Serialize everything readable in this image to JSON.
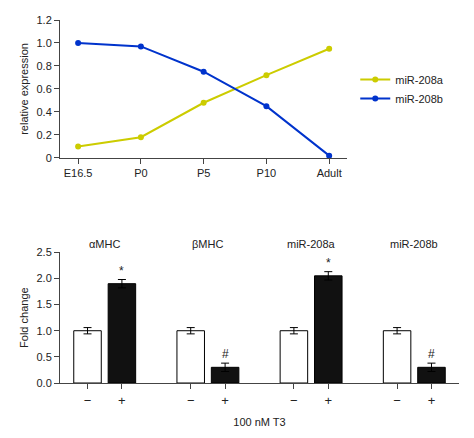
{
  "chart_data": [
    {
      "type": "line",
      "categories": [
        "E16.5",
        "P0",
        "P5",
        "P10",
        "Adult"
      ],
      "series": [
        {
          "name": "miR-208a",
          "color": "#cccc00",
          "values": [
            0.1,
            0.18,
            0.48,
            0.72,
            0.95
          ],
          "marker": "circle",
          "line_style": "solid"
        },
        {
          "name": "miR-208b",
          "color": "#0033cc",
          "values": [
            1.0,
            0.97,
            0.75,
            0.45,
            0.02
          ],
          "marker": "circle",
          "line_style": "solid"
        }
      ],
      "ylabel": "relative expression",
      "ylim": [
        0,
        1.2
      ],
      "yticks": [
        0,
        0.2,
        0.4,
        0.6,
        0.8,
        {
          "value": 1.0,
          "label": "1.0"
        },
        1.2
      ],
      "grid": false,
      "legend": "center right"
    },
    {
      "type": "bar",
      "categories": [
        "αMHC",
        "βMHC",
        "miR-208a",
        "miR-208b"
      ],
      "series": [
        {
          "name": "−",
          "color": "#ffffff",
          "values": [
            1.0,
            1.0,
            1.0,
            1.0
          ],
          "error": [
            0.06,
            0.06,
            0.06,
            0.06
          ]
        },
        {
          "name": "+",
          "color": "#111111",
          "values": [
            1.9,
            0.3,
            2.05,
            0.3
          ],
          "error": [
            0.08,
            0.08,
            0.08,
            0.08
          ]
        }
      ],
      "xlabel": "100 nM T3",
      "ylabel": "Fold change",
      "ylim": [
        0,
        2.5
      ],
      "yticks": [
        {
          "value": 0.0,
          "label": "0.0"
        },
        0.5,
        {
          "value": 1.0,
          "label": "1.0"
        },
        1.5,
        {
          "value": 2.0,
          "label": "2.0"
        },
        2.5
      ],
      "grid": false,
      "annotations": [
        {
          "text": "*",
          "category": "αMHC",
          "series": "+"
        },
        {
          "text": "#",
          "category": "βMHC",
          "series": "+"
        },
        {
          "text": "*",
          "category": "miR-208a",
          "series": "+"
        },
        {
          "text": "#",
          "category": "miR-208b",
          "series": "+"
        }
      ]
    }
  ]
}
